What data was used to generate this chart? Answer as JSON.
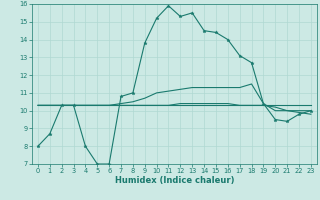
{
  "title": "",
  "xlabel": "Humidex (Indice chaleur)",
  "ylabel": "",
  "bg_color": "#cce9e4",
  "grid_color": "#b0d8d2",
  "line_color": "#1a7a6e",
  "xlim": [
    -0.5,
    23.5
  ],
  "ylim": [
    7,
    16
  ],
  "xticks": [
    0,
    1,
    2,
    3,
    4,
    5,
    6,
    7,
    8,
    9,
    10,
    11,
    12,
    13,
    14,
    15,
    16,
    17,
    18,
    19,
    20,
    21,
    22,
    23
  ],
  "yticks": [
    7,
    8,
    9,
    10,
    11,
    12,
    13,
    14,
    15,
    16
  ],
  "line1_x": [
    0,
    1,
    2,
    3,
    4,
    5,
    6,
    7,
    8,
    9,
    10,
    11,
    12,
    13,
    14,
    15,
    16,
    17,
    18,
    19,
    20,
    21,
    22,
    23
  ],
  "line1_y": [
    8.0,
    8.7,
    10.3,
    10.3,
    8.0,
    7.0,
    7.0,
    10.8,
    11.0,
    13.8,
    15.2,
    15.9,
    15.3,
    15.5,
    14.5,
    14.4,
    14.0,
    13.1,
    12.7,
    10.4,
    9.5,
    9.4,
    9.8,
    10.0
  ],
  "line2_x": [
    0,
    1,
    2,
    3,
    4,
    5,
    6,
    7,
    8,
    9,
    10,
    11,
    12,
    13,
    14,
    15,
    16,
    17,
    18,
    19,
    20,
    21,
    22,
    23
  ],
  "line2_y": [
    10.3,
    10.3,
    10.3,
    10.3,
    10.3,
    10.3,
    10.3,
    10.3,
    10.3,
    10.3,
    10.3,
    10.3,
    10.3,
    10.3,
    10.3,
    10.3,
    10.3,
    10.3,
    10.3,
    10.3,
    10.3,
    10.3,
    10.3,
    10.3
  ],
  "line3_x": [
    0,
    1,
    2,
    3,
    4,
    5,
    6,
    7,
    8,
    9,
    10,
    11,
    12,
    13,
    14,
    15,
    16,
    17,
    18,
    19,
    20,
    21,
    22,
    23
  ],
  "line3_y": [
    10.3,
    10.3,
    10.3,
    10.3,
    10.3,
    10.3,
    10.3,
    10.4,
    10.5,
    10.7,
    11.0,
    11.1,
    11.2,
    11.3,
    11.3,
    11.3,
    11.3,
    11.3,
    11.5,
    10.4,
    10.0,
    10.0,
    10.0,
    10.0
  ],
  "line4_x": [
    0,
    1,
    2,
    3,
    4,
    5,
    6,
    7,
    8,
    9,
    10,
    11,
    12,
    13,
    14,
    15,
    16,
    17,
    18,
    19,
    20,
    21,
    22,
    23
  ],
  "line4_y": [
    10.3,
    10.3,
    10.3,
    10.3,
    10.3,
    10.3,
    10.3,
    10.3,
    10.3,
    10.3,
    10.3,
    10.3,
    10.4,
    10.4,
    10.4,
    10.4,
    10.4,
    10.3,
    10.3,
    10.3,
    10.2,
    10.0,
    9.9,
    9.8
  ],
  "xlabel_fontsize": 6.0,
  "tick_fontsize": 4.8,
  "line_width": 0.8,
  "marker_size": 2.5
}
